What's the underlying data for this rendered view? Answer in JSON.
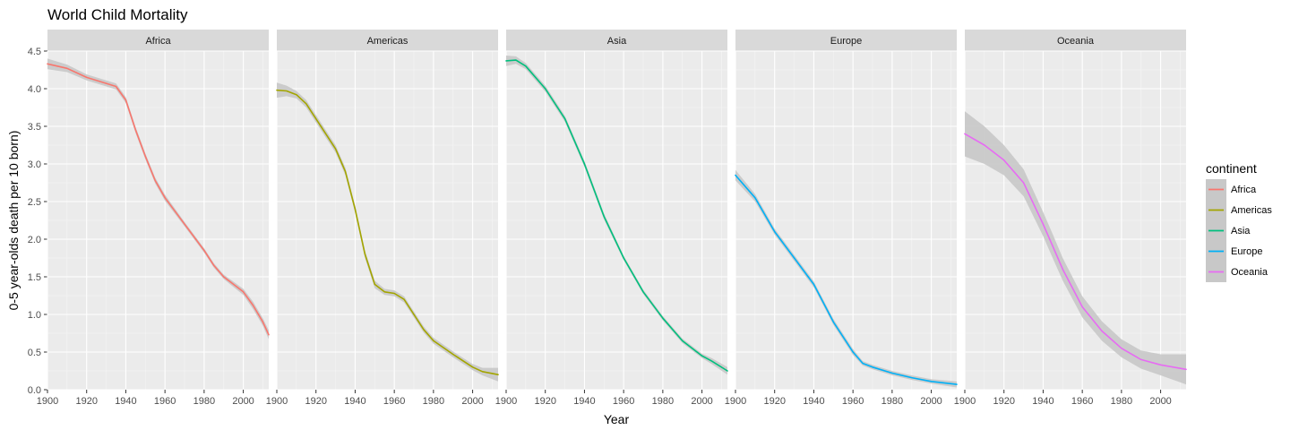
{
  "chart_data": {
    "type": "line",
    "title": "World Child Mortality",
    "xlabel": "Year",
    "ylabel": "0-5 year-olds death per 10 born)",
    "xlim": [
      1900,
      2013
    ],
    "ylim": [
      0,
      4.5
    ],
    "x_ticks": [
      "1900",
      "1920",
      "1940",
      "1960",
      "1980",
      "2000"
    ],
    "y_ticks": [
      "0.0",
      "0.5",
      "1.0",
      "1.5",
      "2.0",
      "2.5",
      "3.0",
      "3.5",
      "4.0",
      "4.5"
    ],
    "grid": true,
    "confidence_band": true,
    "band_color": "#c8c8c8",
    "panel_background": "#ebebeb",
    "strip_background": "#d9d9d9",
    "legend_title": "continent",
    "legend_position": "right",
    "facets": [
      {
        "name": "Africa",
        "color": "#F8766D",
        "x": [
          1900,
          1910,
          1920,
          1930,
          1935,
          1940,
          1945,
          1950,
          1955,
          1960,
          1970,
          1980,
          1985,
          1990,
          2000,
          2005,
          2010,
          2013
        ],
        "y": [
          4.33,
          4.27,
          4.15,
          4.07,
          4.03,
          3.85,
          3.45,
          3.1,
          2.78,
          2.55,
          2.2,
          1.85,
          1.65,
          1.5,
          1.3,
          1.12,
          0.9,
          0.73
        ],
        "band": [
          0.07,
          0.05,
          0.04,
          0.04,
          0.04,
          0.04,
          0.04,
          0.04,
          0.04,
          0.04,
          0.03,
          0.03,
          0.03,
          0.03,
          0.04,
          0.05,
          0.05,
          0.06
        ]
      },
      {
        "name": "Americas",
        "color": "#A3A500",
        "x": [
          1900,
          1905,
          1910,
          1915,
          1920,
          1930,
          1935,
          1940,
          1945,
          1950,
          1955,
          1960,
          1965,
          1970,
          1975,
          1980,
          1990,
          2000,
          2005,
          2013
        ],
        "y": [
          3.98,
          3.97,
          3.92,
          3.8,
          3.6,
          3.2,
          2.9,
          2.4,
          1.8,
          1.4,
          1.3,
          1.28,
          1.2,
          1.0,
          0.8,
          0.65,
          0.47,
          0.3,
          0.24,
          0.2
        ],
        "band": [
          0.1,
          0.07,
          0.05,
          0.05,
          0.05,
          0.05,
          0.05,
          0.05,
          0.05,
          0.05,
          0.04,
          0.04,
          0.04,
          0.04,
          0.04,
          0.04,
          0.04,
          0.04,
          0.05,
          0.09
        ]
      },
      {
        "name": "Asia",
        "color": "#00BF7D",
        "x": [
          1900,
          1905,
          1910,
          1920,
          1930,
          1940,
          1950,
          1960,
          1970,
          1980,
          1990,
          2000,
          2005,
          2013
        ],
        "y": [
          4.37,
          4.38,
          4.3,
          4.0,
          3.6,
          3.0,
          2.3,
          1.75,
          1.3,
          0.95,
          0.65,
          0.45,
          0.38,
          0.25
        ],
        "band": [
          0.07,
          0.05,
          0.04,
          0.04,
          0.04,
          0.04,
          0.04,
          0.03,
          0.03,
          0.03,
          0.03,
          0.03,
          0.04,
          0.05
        ]
      },
      {
        "name": "Europe",
        "color": "#00B0F6",
        "x": [
          1900,
          1910,
          1920,
          1930,
          1940,
          1950,
          1960,
          1965,
          1970,
          1980,
          1990,
          2000,
          2013
        ],
        "y": [
          2.85,
          2.55,
          2.1,
          1.75,
          1.4,
          0.9,
          0.5,
          0.35,
          0.3,
          0.22,
          0.16,
          0.11,
          0.07
        ],
        "band": [
          0.07,
          0.05,
          0.04,
          0.04,
          0.04,
          0.04,
          0.04,
          0.03,
          0.03,
          0.03,
          0.03,
          0.03,
          0.04
        ]
      },
      {
        "name": "Oceania",
        "color": "#E76BF3",
        "x": [
          1900,
          1910,
          1920,
          1930,
          1940,
          1945,
          1950,
          1960,
          1970,
          1980,
          1990,
          2000,
          2013
        ],
        "y": [
          3.4,
          3.25,
          3.05,
          2.75,
          2.2,
          1.9,
          1.6,
          1.1,
          0.78,
          0.55,
          0.4,
          0.33,
          0.27
        ],
        "band": [
          0.3,
          0.25,
          0.2,
          0.18,
          0.16,
          0.16,
          0.15,
          0.14,
          0.13,
          0.12,
          0.12,
          0.14,
          0.2
        ]
      }
    ]
  }
}
